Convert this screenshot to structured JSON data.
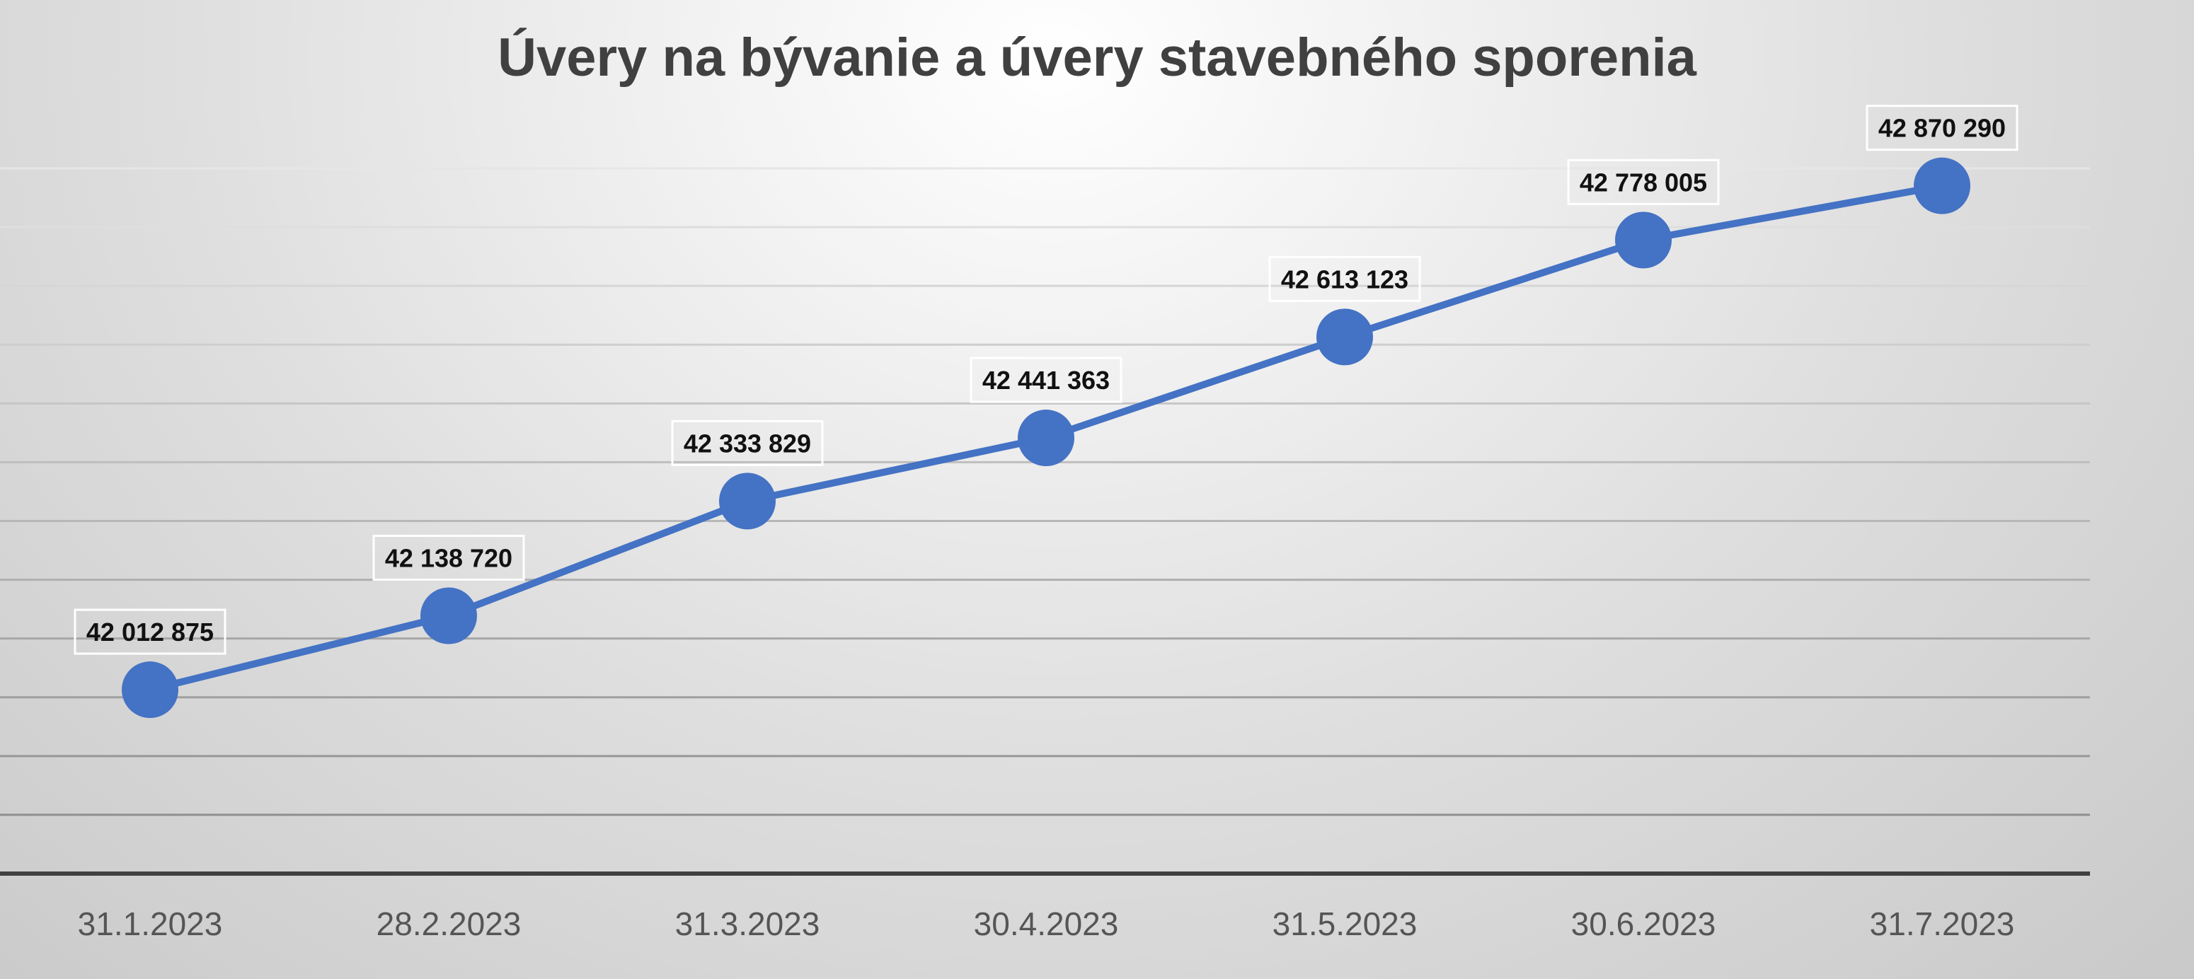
{
  "chart_data": {
    "type": "line",
    "title": "Úvery na bývanie a úvery stavebného sporenia",
    "xlabel": "",
    "ylabel": "",
    "categories": [
      "31.1.2023",
      "28.2.2023",
      "31.3.2023",
      "30.4.2023",
      "31.5.2023",
      "30.6.2023",
      "31.7.2023"
    ],
    "series": [
      {
        "values": [
          42012875,
          42138720,
          42333829,
          42441363,
          42613123,
          42778005,
          42870290
        ],
        "labels": [
          "42 012 875",
          "42 138 720",
          "42 333 829",
          "42 441 363",
          "42 613 123",
          "42 778 005",
          "42 870 290"
        ],
        "color": "#4472C4"
      }
    ],
    "ylim": [
      41700000,
      42900000
    ],
    "grid": true,
    "legend": "none",
    "y_tick_labels_shown": false
  }
}
